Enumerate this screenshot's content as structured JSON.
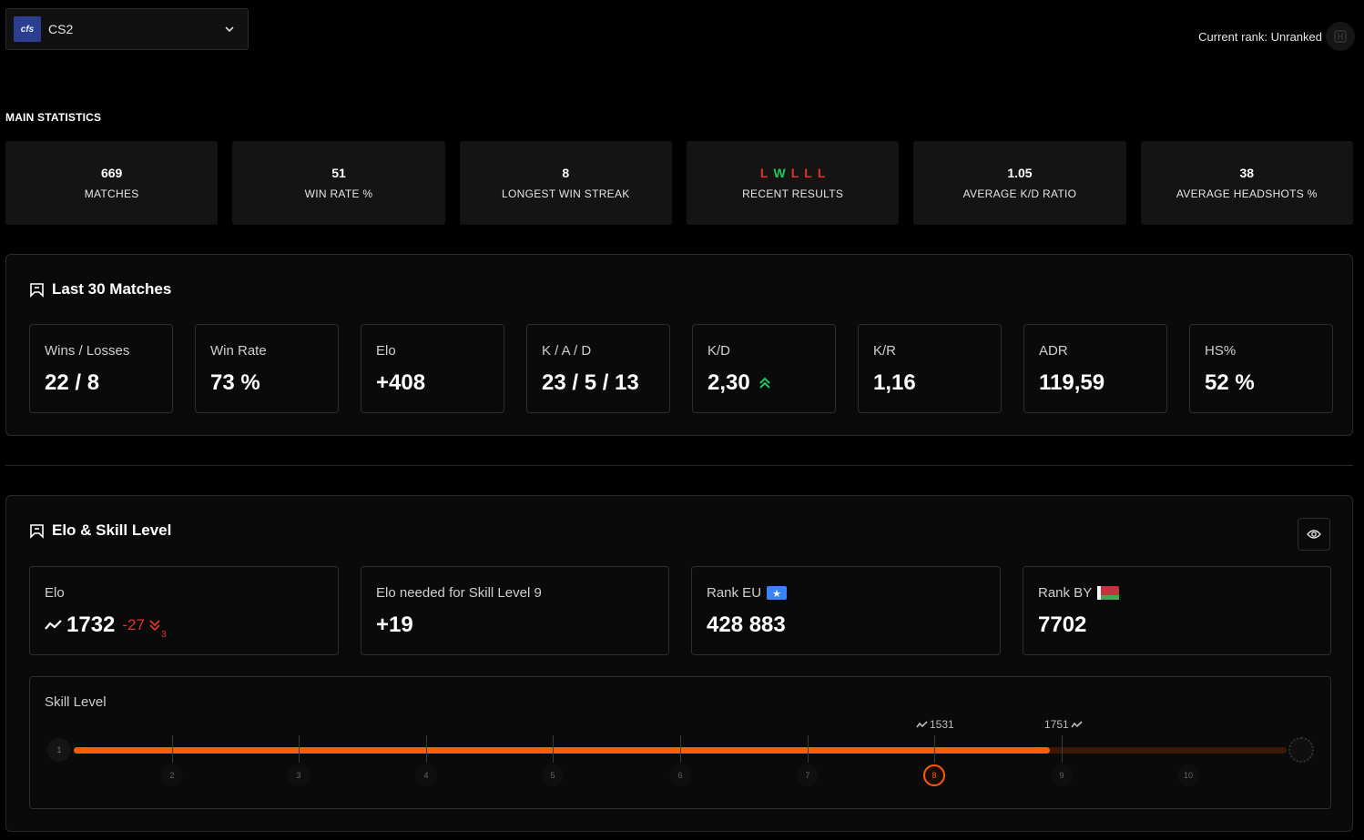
{
  "header": {
    "game_logo_text": "cfs",
    "game_name": "CS2",
    "current_rank_label": "Current rank: Unranked"
  },
  "main_statistics": {
    "title": "MAIN STATISTICS",
    "items": [
      {
        "value": "669",
        "label": "MATCHES"
      },
      {
        "value": "51",
        "label": "WIN RATE %"
      },
      {
        "value": "8",
        "label": "LONGEST WIN STREAK"
      },
      {
        "value": "",
        "label": "RECENT RESULTS",
        "results": [
          "L",
          "W",
          "L",
          "L",
          "L"
        ]
      },
      {
        "value": "1.05",
        "label": "AVERAGE K/D RATIO"
      },
      {
        "value": "38",
        "label": "AVERAGE HEADSHOTS %"
      }
    ],
    "colors": {
      "loss": "#e03232",
      "win": "#22c55e"
    }
  },
  "last30": {
    "title": "Last 30 Matches",
    "cards": [
      {
        "label": "Wins / Losses",
        "value": "22 / 8"
      },
      {
        "label": "Win Rate",
        "value": "73 %"
      },
      {
        "label": "Elo",
        "value": "+408"
      },
      {
        "label": "K / A / D",
        "value": "23 / 5 / 13"
      },
      {
        "label": "K/D",
        "value": "2,30",
        "trend": "up"
      },
      {
        "label": "K/R",
        "value": "1,16"
      },
      {
        "label": "ADR",
        "value": "119,59"
      },
      {
        "label": "HS%",
        "value": "52 %"
      }
    ]
  },
  "elo_skill": {
    "title": "Elo & Skill Level",
    "elo_label": "Elo",
    "elo_value": "1732",
    "elo_change": "-27",
    "elo_change_sub": "3",
    "needed_label": "Elo needed for Skill Level 9",
    "needed_value": "+19",
    "rank_eu_label": "Rank EU",
    "rank_eu_value": "428 883",
    "rank_by_label": "Rank BY",
    "rank_by_value": "7702",
    "skill_label": "Skill Level",
    "levels": [
      "1",
      "2",
      "3",
      "4",
      "5",
      "6",
      "7",
      "8",
      "9",
      "10"
    ],
    "current_level": 8,
    "progress_fraction": 0.805,
    "level_min_marker": "1531",
    "level_max_marker": "1751",
    "accent": "#ff5a0a",
    "negative": "#e03232"
  }
}
